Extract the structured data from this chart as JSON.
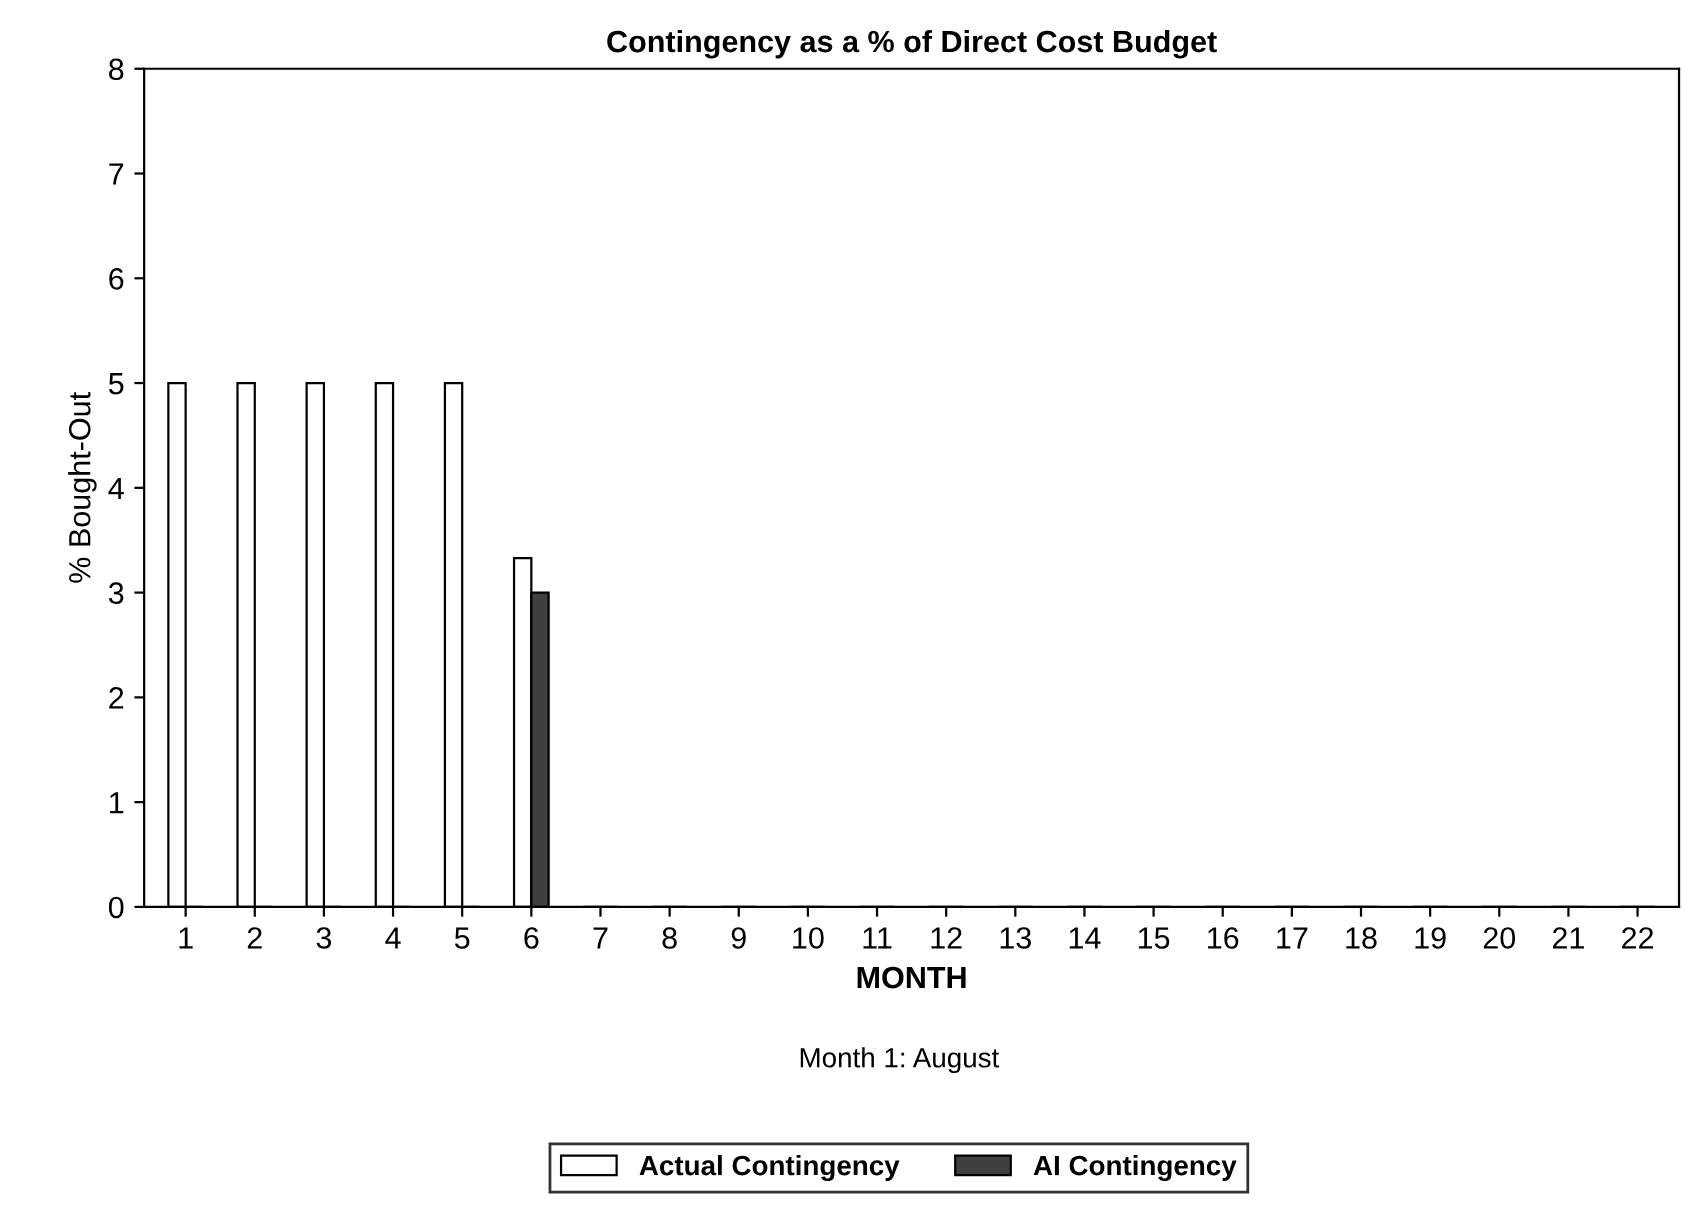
{
  "chart_data": {
    "type": "bar",
    "title": "Contingency as a % of Direct Cost Budget",
    "xlabel": "MONTH",
    "ylabel": "% Bought-Out",
    "categories": [
      "1",
      "2",
      "3",
      "4",
      "5",
      "6",
      "7",
      "8",
      "9",
      "10",
      "11",
      "12",
      "13",
      "14",
      "15",
      "16",
      "17",
      "18",
      "19",
      "20",
      "21",
      "22"
    ],
    "series": [
      {
        "name": "Actual Contingency",
        "color": "#ffffff",
        "values": [
          5,
          5,
          5,
          5,
          5,
          3.33,
          0,
          0,
          0,
          0,
          0,
          0,
          0,
          0,
          0,
          0,
          0,
          0,
          0,
          0,
          0,
          0
        ]
      },
      {
        "name": "AI Contingency",
        "color": "#404040",
        "values": [
          0,
          0,
          0,
          0,
          0,
          3,
          0,
          0,
          0,
          0,
          0,
          0,
          0,
          0,
          0,
          0,
          0,
          0,
          0,
          0,
          0,
          0
        ]
      }
    ],
    "ylim": [
      0,
      8
    ],
    "yticks": [
      0,
      1,
      2,
      3,
      4,
      5,
      6,
      7,
      8
    ],
    "grid": false,
    "legend": "bottom",
    "annotations": [
      "Month 1: August"
    ]
  }
}
